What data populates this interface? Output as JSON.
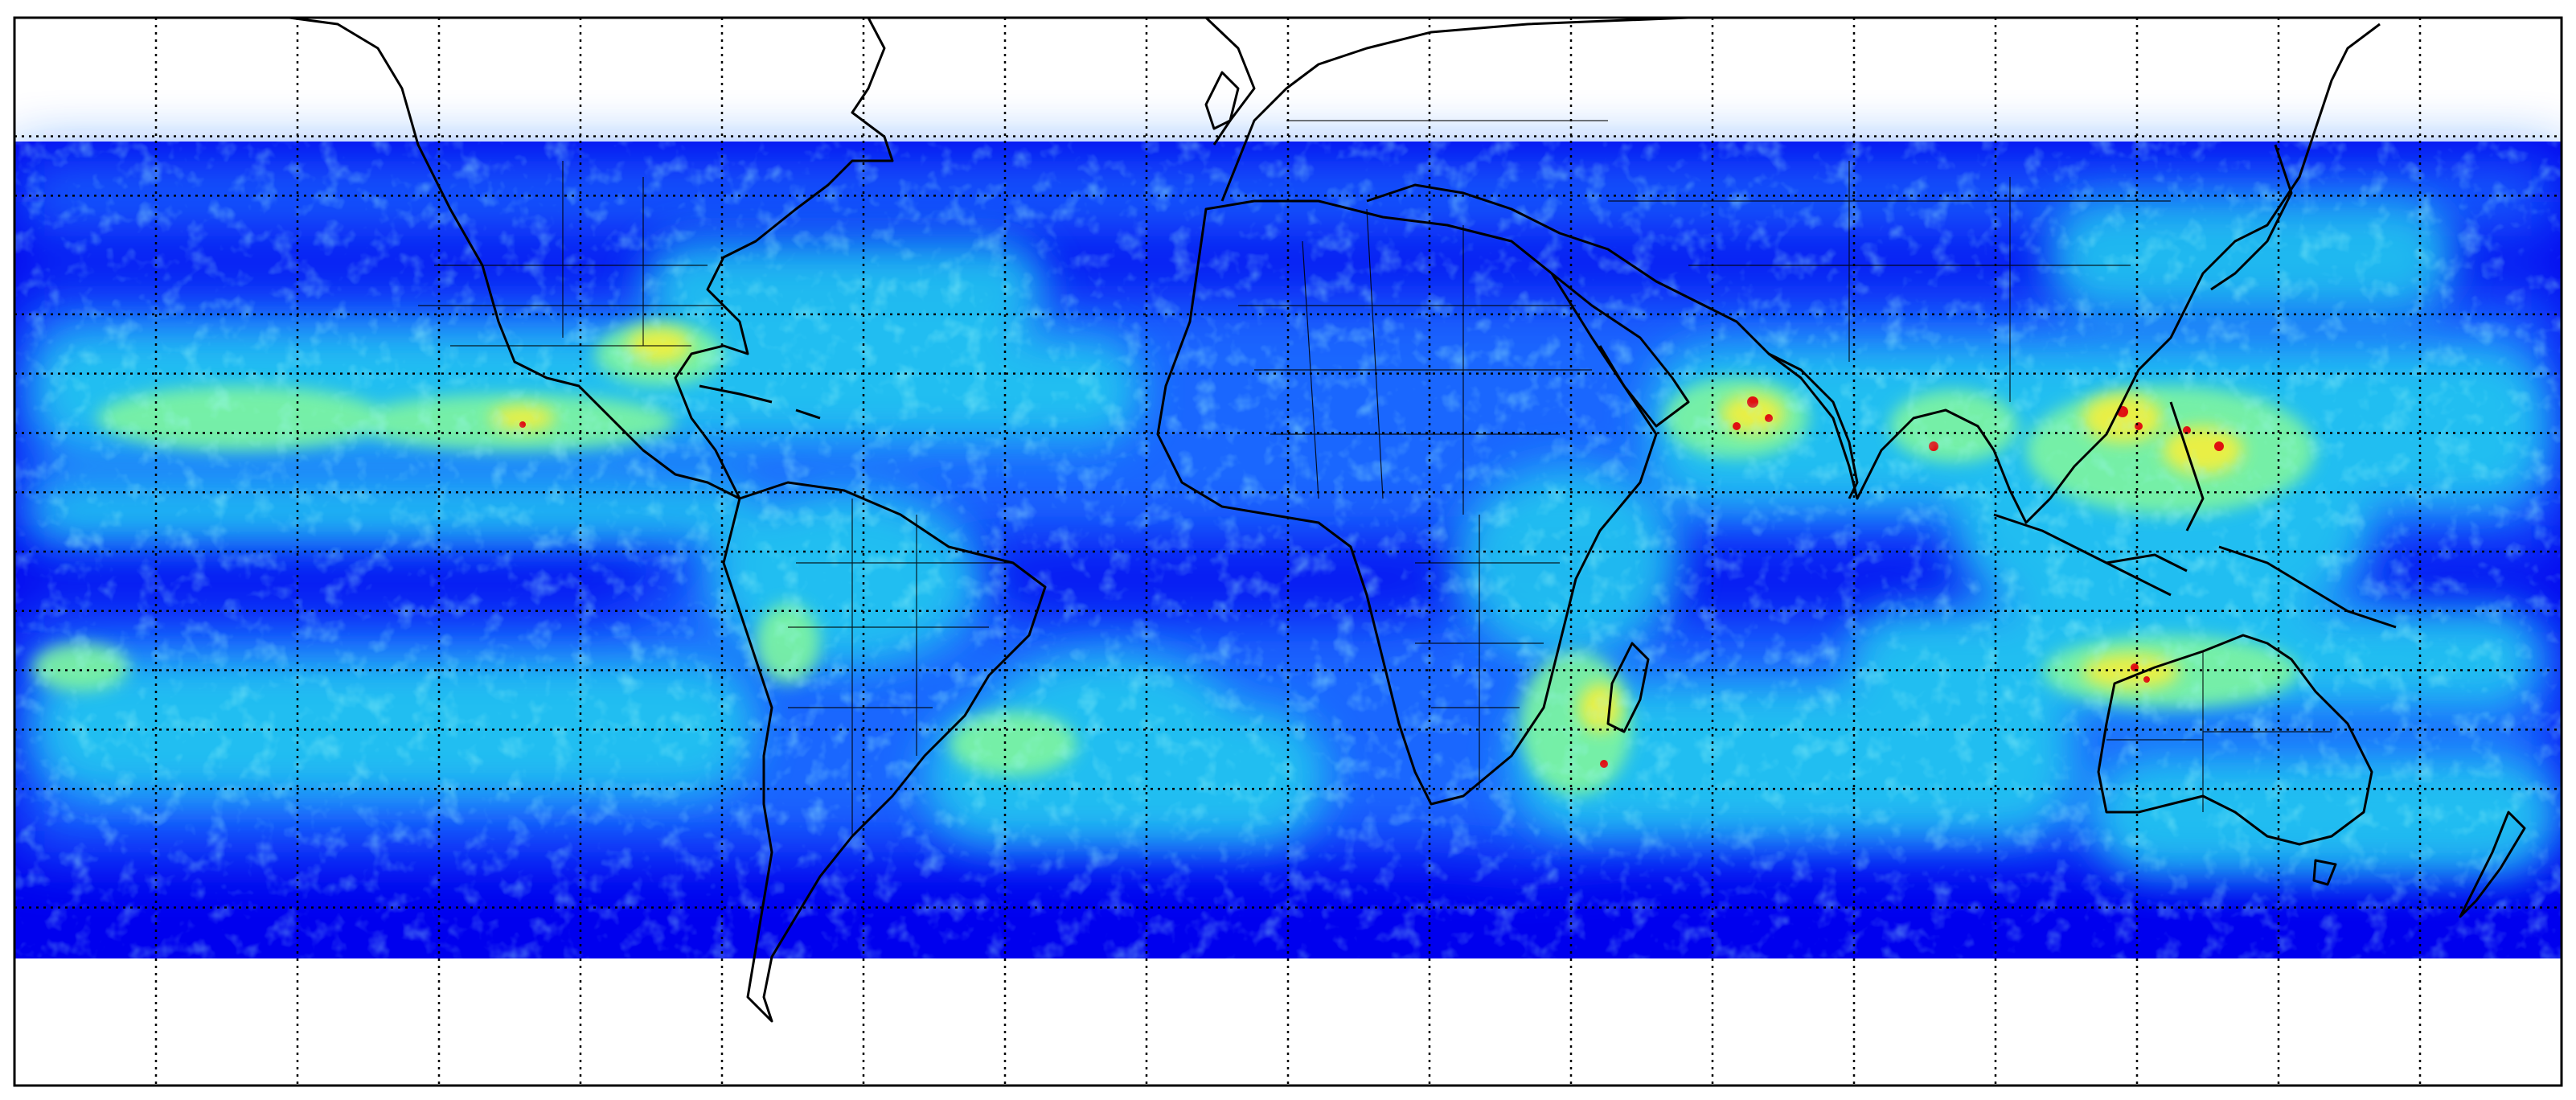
{
  "map": {
    "title": "",
    "projection": "equirectangular",
    "longitude_range": [
      -180,
      180
    ],
    "latitude_range": [
      -90,
      90
    ],
    "data_latitude_range": [
      -60,
      60
    ],
    "graticule": "dotted",
    "colormap": "jet",
    "colors": {
      "background": "#ffffff",
      "low": "#0000ee",
      "medium_low": "#1e6dff",
      "medium": "#22c8f0",
      "medium_high": "#7ff5a0",
      "high": "#f0f040",
      "very_high": "#ff8020",
      "extreme": "#e01010",
      "coastline": "#000000",
      "border": "#000000"
    }
  }
}
